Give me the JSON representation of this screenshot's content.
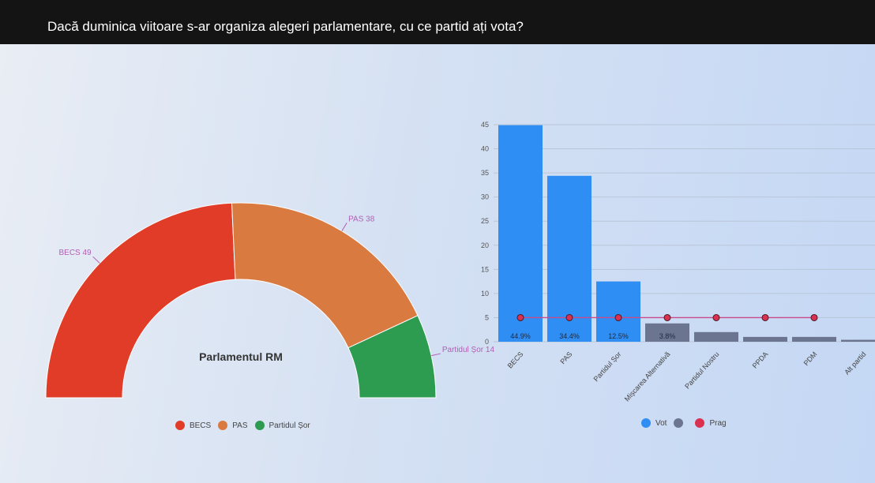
{
  "question": "Dacă duminica viitoare s-ar organiza alegeri parlamentare, cu ce partid ați vota?",
  "colors": {
    "becs": "#e03c28",
    "pas": "#d97a41",
    "sor": "#2e9c50",
    "vot": "#2f8ef3",
    "vot_other": "#6b7590",
    "prag": "#d9314f"
  },
  "chart_data": [
    {
      "type": "pie",
      "subtype": "semi-donut (parliament seats)",
      "center_label": "Parlamentul RM",
      "categories": [
        "BECS",
        "PAS",
        "Partidul Șor"
      ],
      "values": [
        49,
        38,
        14
      ],
      "labels": [
        "BECS 49",
        "PAS 38",
        "Partidul Șor 14"
      ],
      "legend": [
        "BECS",
        "PAS",
        "Partidul Șor"
      ],
      "legend_position": "bottom"
    },
    {
      "type": "bar",
      "categories": [
        "BECS",
        "PAS",
        "Partidul Șor",
        "Mișcarea Alternativă",
        "Partidul Nostru",
        "PPDA",
        "PDM",
        "Alt partid"
      ],
      "series": [
        {
          "name": "Vot",
          "values": [
            44.9,
            34.4,
            12.5,
            3.8,
            2.0,
            1.0,
            1.0,
            0.4
          ]
        },
        {
          "name": "Prag",
          "type": "line",
          "values": [
            5,
            5,
            5,
            5,
            5,
            5,
            5,
            null
          ]
        }
      ],
      "data_labels": [
        "44.9%",
        "34.4%",
        "12.5%",
        "3.8%"
      ],
      "yticks": [
        "0",
        "5",
        "10",
        "15",
        "20",
        "25",
        "30",
        "35",
        "40",
        "45"
      ],
      "ylim": [
        0,
        45
      ],
      "grid": true,
      "legend": [
        "Vot",
        "Prag"
      ],
      "legend_position": "bottom"
    }
  ]
}
